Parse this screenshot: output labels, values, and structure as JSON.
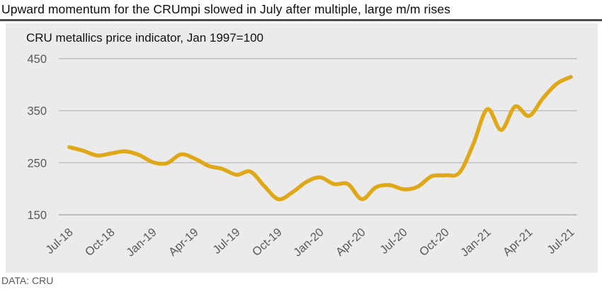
{
  "header": {
    "title": "Upward momentum for the CRUmpi slowed in July after multiple, large m/m rises"
  },
  "footer": {
    "source": "DATA: CRU"
  },
  "colors": {
    "line": "#dea819",
    "plot_background": "#ebebeb",
    "gridline": "#bdbdbd",
    "tick_label": "#595959",
    "title_rule": "#4d4d4d"
  },
  "chart_data": {
    "type": "line",
    "title": "CRU metallics price indicator, Jan 1997=100",
    "xlabel": "",
    "ylabel": "",
    "ylim": [
      150,
      450
    ],
    "y_ticks": [
      450,
      350,
      250,
      150
    ],
    "grid": true,
    "legend_position": "none",
    "x": [
      "Jul-18",
      "Aug-18",
      "Sep-18",
      "Oct-18",
      "Nov-18",
      "Dec-18",
      "Jan-19",
      "Feb-19",
      "Mar-19",
      "Apr-19",
      "May-19",
      "Jun-19",
      "Jul-19",
      "Aug-19",
      "Sep-19",
      "Oct-19",
      "Nov-19",
      "Dec-19",
      "Jan-20",
      "Feb-20",
      "Mar-20",
      "Apr-20",
      "May-20",
      "Jun-20",
      "Jul-20",
      "Aug-20",
      "Sep-20",
      "Oct-20",
      "Nov-20",
      "Dec-20",
      "Jan-21",
      "Feb-21",
      "Mar-21",
      "Apr-21",
      "May-21",
      "Jun-21",
      "Jul-21"
    ],
    "x_tick_labels": [
      "Jul-18",
      "Oct-18",
      "Jan-19",
      "Apr-19",
      "Jul-19",
      "Oct-19",
      "Jan-20",
      "Apr-20",
      "Jul-20",
      "Oct-20",
      "Jan-21",
      "Apr-21",
      "Jul-21"
    ],
    "series": [
      {
        "name": "CRU metallics price indicator",
        "values": [
          280,
          273,
          264,
          268,
          272,
          265,
          251,
          249,
          266,
          258,
          244,
          238,
          227,
          233,
          205,
          180,
          193,
          213,
          222,
          209,
          209,
          180,
          203,
          207,
          199,
          204,
          224,
          226,
          231,
          286,
          353,
          313,
          358,
          340,
          374,
          402,
          415
        ]
      }
    ]
  }
}
